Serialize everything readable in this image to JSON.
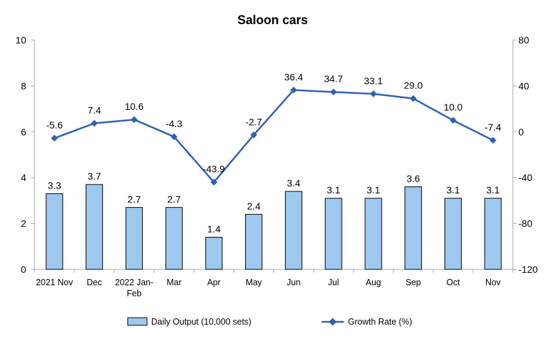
{
  "chart_data": {
    "type": "bar+line",
    "title": "Saloon cars",
    "categories": [
      "2021 Nov",
      "Dec",
      "2022 Jan-Feb",
      "Mar",
      "Apr",
      "May",
      "Jun",
      "Jul",
      "Aug",
      "Sep",
      "Oct",
      "Nov"
    ],
    "category_display": [
      [
        "2021 Nov"
      ],
      [
        "Dec"
      ],
      [
        "2022 Jan-",
        "Feb"
      ],
      [
        "Mar"
      ],
      [
        "Apr"
      ],
      [
        "May"
      ],
      [
        "Jun"
      ],
      [
        "Jul"
      ],
      [
        "Aug"
      ],
      [
        "Sep"
      ],
      [
        "Oct"
      ],
      [
        "Nov"
      ]
    ],
    "series": [
      {
        "name": "Daily Output (10,000 sets)",
        "type": "bar",
        "axis": "left",
        "values": [
          3.3,
          3.7,
          2.7,
          2.7,
          1.4,
          2.4,
          3.4,
          3.1,
          3.1,
          3.6,
          3.1,
          3.1
        ],
        "labels": [
          "3.3",
          "3.7",
          "2.7",
          "2.7",
          "1.4",
          "2.4",
          "3.4",
          "3.1",
          "3.1",
          "3.6",
          "3.1",
          "3.1"
        ],
        "color": "#9dc8f0",
        "stroke": "#000000"
      },
      {
        "name": "Growth Rate (%)",
        "type": "line",
        "axis": "right",
        "values": [
          -5.6,
          7.4,
          10.6,
          -4.3,
          -43.9,
          -2.7,
          36.4,
          34.7,
          33.1,
          29.0,
          10.0,
          -7.4
        ],
        "labels": [
          "-5.6",
          "7.4",
          "10.6",
          "-4.3",
          "-43.9",
          "-2.7",
          "36.4",
          "34.7",
          "33.1",
          "29.0",
          "10.0",
          "-7.4"
        ],
        "color": "#2e62b0"
      }
    ],
    "left_axis": {
      "ylim": [
        0,
        10
      ],
      "ticks": [
        "0",
        "2",
        "4",
        "6",
        "8",
        "10"
      ]
    },
    "right_axis": {
      "ylim": [
        -120,
        80
      ],
      "ticks": [
        "-120",
        "-80",
        "-40",
        "0",
        "40",
        "80"
      ]
    },
    "grid": false,
    "legend_position": "bottom"
  }
}
